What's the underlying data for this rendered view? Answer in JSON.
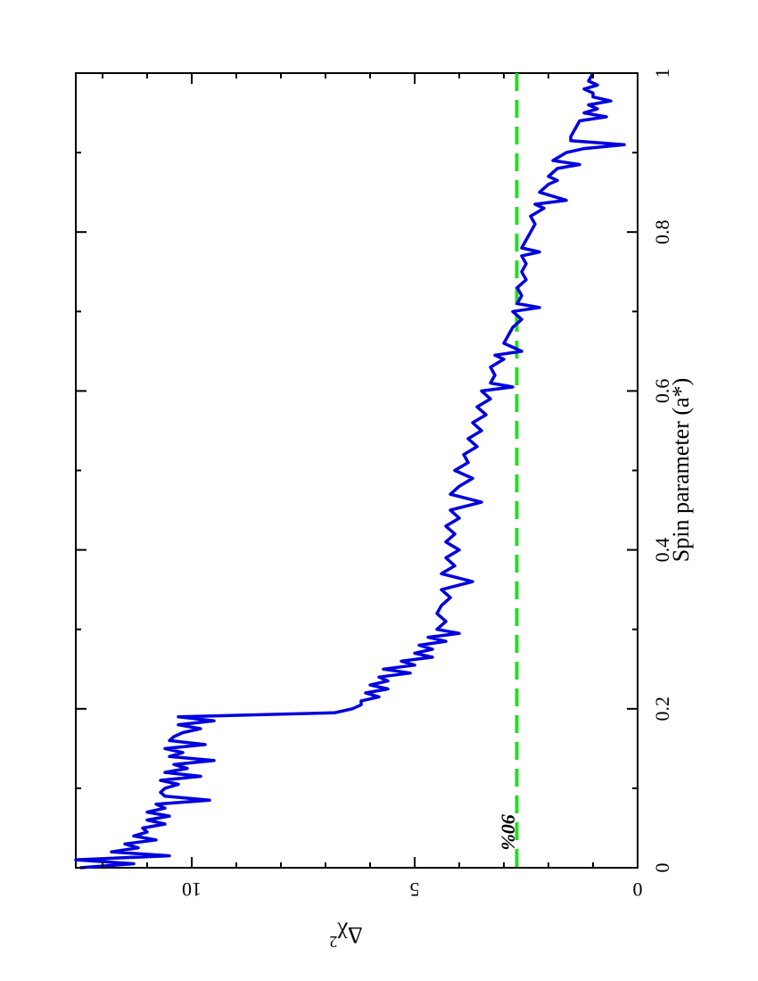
{
  "chart_data": {
    "type": "line",
    "orientation": "rotated 90 degrees clockwise",
    "xlabel": "Spin parameter (a*)",
    "ylabel": "Δχ",
    "ylabel_superscript": "2",
    "xlim": [
      0,
      1
    ],
    "ylim": [
      0,
      12.6
    ],
    "x_ticks": [
      "0",
      "0.2",
      "0.4",
      "0.6",
      "0.8",
      "1"
    ],
    "y_ticks": [
      "0",
      "5",
      "10"
    ],
    "grid": false,
    "reference_line": {
      "label": "90%",
      "value": 2.71,
      "color": "#22dd22",
      "style": "dashed"
    },
    "series": [
      {
        "color": "#0000dd",
        "x": [
          0.0,
          0.005,
          0.01,
          0.015,
          0.02,
          0.025,
          0.03,
          0.035,
          0.04,
          0.045,
          0.05,
          0.055,
          0.06,
          0.065,
          0.07,
          0.075,
          0.08,
          0.085,
          0.09,
          0.095,
          0.1,
          0.105,
          0.11,
          0.115,
          0.12,
          0.125,
          0.13,
          0.135,
          0.14,
          0.145,
          0.15,
          0.155,
          0.16,
          0.165,
          0.17,
          0.175,
          0.18,
          0.185,
          0.19,
          0.195,
          0.2,
          0.205,
          0.21,
          0.215,
          0.22,
          0.225,
          0.23,
          0.235,
          0.24,
          0.245,
          0.25,
          0.255,
          0.26,
          0.265,
          0.27,
          0.275,
          0.28,
          0.285,
          0.29,
          0.295,
          0.3,
          0.31,
          0.32,
          0.33,
          0.34,
          0.35,
          0.36,
          0.37,
          0.38,
          0.39,
          0.4,
          0.41,
          0.42,
          0.43,
          0.44,
          0.45,
          0.46,
          0.47,
          0.48,
          0.49,
          0.5,
          0.51,
          0.52,
          0.53,
          0.54,
          0.55,
          0.56,
          0.57,
          0.58,
          0.59,
          0.6,
          0.605,
          0.61,
          0.62,
          0.63,
          0.64,
          0.645,
          0.65,
          0.66,
          0.67,
          0.68,
          0.69,
          0.7,
          0.705,
          0.71,
          0.72,
          0.73,
          0.74,
          0.75,
          0.76,
          0.77,
          0.775,
          0.78,
          0.79,
          0.8,
          0.81,
          0.82,
          0.83,
          0.835,
          0.84,
          0.85,
          0.86,
          0.865,
          0.87,
          0.88,
          0.885,
          0.89,
          0.9,
          0.905,
          0.91,
          0.915,
          0.92,
          0.93,
          0.94,
          0.945,
          0.95,
          0.955,
          0.96,
          0.965,
          0.97,
          0.975,
          0.98,
          0.985,
          0.99,
          1.0
        ],
        "y": [
          12.5,
          11.3,
          12.6,
          10.5,
          11.8,
          11.2,
          11.5,
          10.8,
          11.3,
          11.0,
          11.1,
          10.6,
          11.0,
          10.5,
          11.0,
          10.6,
          10.8,
          9.6,
          10.6,
          10.7,
          10.6,
          10.3,
          10.7,
          9.8,
          10.6,
          10.1,
          10.4,
          9.5,
          10.5,
          10.2,
          10.6,
          9.7,
          10.5,
          10.4,
          10.2,
          9.8,
          10.3,
          9.5,
          10.3,
          6.8,
          6.4,
          6.2,
          6.2,
          5.8,
          6.1,
          5.6,
          6.0,
          5.6,
          5.8,
          5.1,
          5.7,
          5.0,
          5.3,
          4.6,
          5.0,
          4.6,
          4.9,
          4.3,
          4.7,
          4.0,
          4.5,
          4.3,
          4.5,
          4.4,
          4.2,
          4.4,
          3.7,
          4.4,
          4.1,
          4.3,
          4.0,
          4.3,
          4.1,
          4.3,
          4.0,
          4.2,
          3.5,
          4.2,
          4.0,
          3.7,
          4.1,
          3.8,
          3.9,
          3.6,
          3.8,
          3.5,
          3.7,
          3.4,
          3.6,
          3.3,
          3.5,
          2.8,
          3.3,
          3.2,
          3.3,
          3.0,
          3.2,
          2.6,
          3.0,
          2.9,
          2.8,
          2.6,
          2.8,
          2.2,
          2.7,
          2.6,
          2.7,
          2.5,
          2.6,
          2.5,
          2.6,
          2.2,
          2.6,
          2.5,
          2.4,
          2.3,
          2.4,
          2.1,
          2.3,
          1.6,
          2.2,
          2.0,
          1.8,
          2.0,
          1.8,
          1.3,
          1.9,
          1.6,
          1.2,
          0.3,
          1.5,
          1.5,
          1.4,
          1.3,
          0.7,
          1.2,
          0.9,
          1.1,
          0.6,
          1.0,
          1.0,
          1.2,
          0.9,
          1.1,
          1.0
        ]
      }
    ]
  }
}
